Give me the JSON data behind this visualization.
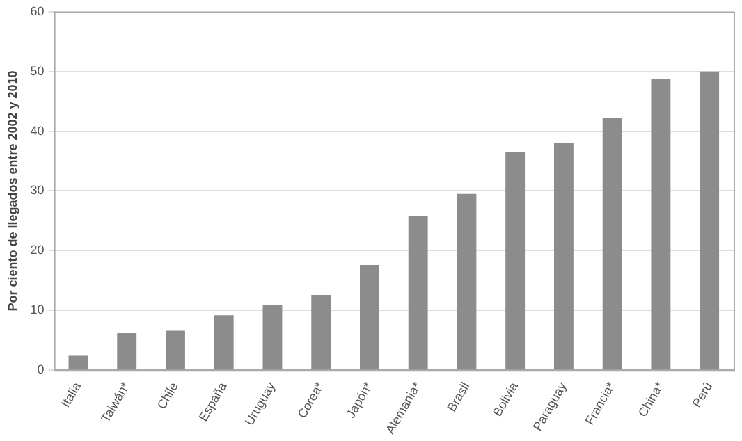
{
  "chart_data": {
    "type": "bar",
    "ylabel": "Por ciento de llegados entre 2002 y 2010",
    "categories": [
      "Italia",
      "Taiwán*",
      "Chile",
      "España",
      "Uruguay",
      "Corea*",
      "Japón*",
      "Alemania*",
      "Brasil",
      "Bolivia",
      "Paraguay",
      "Francia*",
      "China*",
      "Perú"
    ],
    "values": [
      2.4,
      6.2,
      6.6,
      9.2,
      10.9,
      12.6,
      17.6,
      25.8,
      29.5,
      36.5,
      38.1,
      42.2,
      48.7,
      50.0
    ],
    "color": "#8c8c8c",
    "ylim": [
      0,
      60
    ],
    "yticks": [
      0,
      10,
      20,
      30,
      40,
      50,
      60
    ],
    "grid": "y"
  }
}
